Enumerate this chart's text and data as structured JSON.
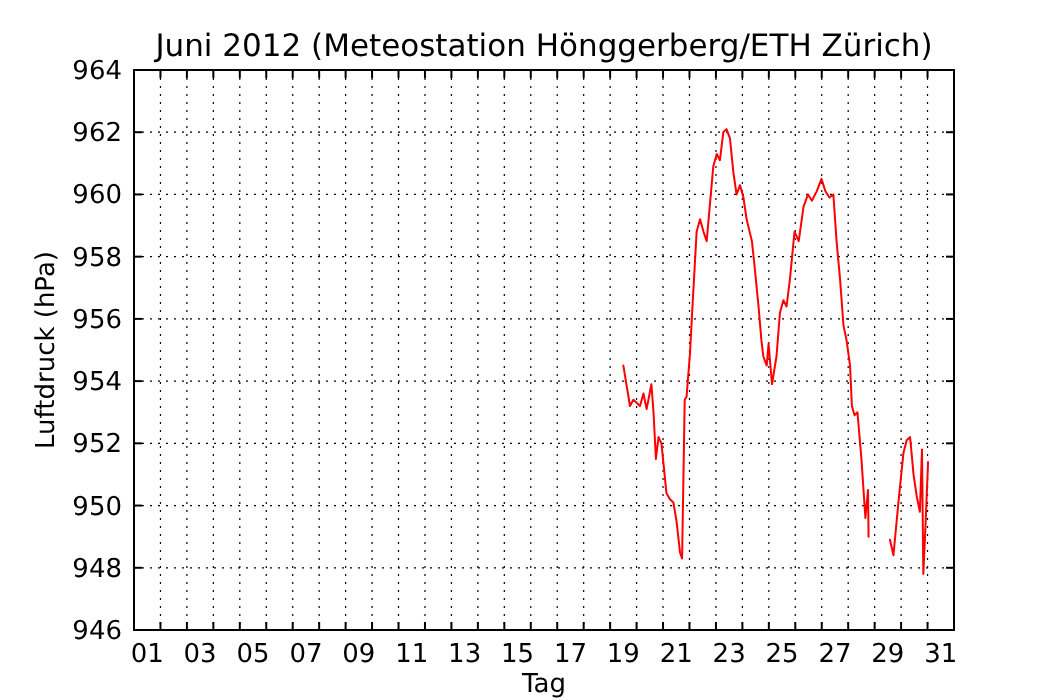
{
  "chart_data": {
    "type": "line",
    "title": "Juni 2012  (Meteostation Hönggerberg/ETH Zürich)",
    "xlabel": "Tag",
    "ylabel": "Luftdruck (hPa)",
    "xlim": [
      1,
      32
    ],
    "ylim": [
      946,
      964
    ],
    "xticks": [
      {
        "value": 1,
        "label": null
      },
      {
        "value": 1.5,
        "label": "01"
      },
      {
        "value": 2,
        "label": null
      },
      {
        "value": 3,
        "label": null
      },
      {
        "value": 3.5,
        "label": "03"
      },
      {
        "value": 4,
        "label": null
      },
      {
        "value": 5,
        "label": null
      },
      {
        "value": 5.5,
        "label": "05"
      },
      {
        "value": 6,
        "label": null
      },
      {
        "value": 7,
        "label": null
      },
      {
        "value": 7.5,
        "label": "07"
      },
      {
        "value": 8,
        "label": null
      },
      {
        "value": 9,
        "label": null
      },
      {
        "value": 9.5,
        "label": "09"
      },
      {
        "value": 10,
        "label": null
      },
      {
        "value": 11,
        "label": null
      },
      {
        "value": 11.5,
        "label": "11"
      },
      {
        "value": 12,
        "label": null
      },
      {
        "value": 13,
        "label": null
      },
      {
        "value": 13.5,
        "label": "13"
      },
      {
        "value": 14,
        "label": null
      },
      {
        "value": 15,
        "label": null
      },
      {
        "value": 15.5,
        "label": "15"
      },
      {
        "value": 16,
        "label": null
      },
      {
        "value": 17,
        "label": null
      },
      {
        "value": 17.5,
        "label": "17"
      },
      {
        "value": 18,
        "label": null
      },
      {
        "value": 19,
        "label": null
      },
      {
        "value": 19.5,
        "label": "19"
      },
      {
        "value": 20,
        "label": null
      },
      {
        "value": 21,
        "label": null
      },
      {
        "value": 21.5,
        "label": "21"
      },
      {
        "value": 22,
        "label": null
      },
      {
        "value": 23,
        "label": null
      },
      {
        "value": 23.5,
        "label": "23"
      },
      {
        "value": 24,
        "label": null
      },
      {
        "value": 25,
        "label": null
      },
      {
        "value": 25.5,
        "label": "25"
      },
      {
        "value": 26,
        "label": null
      },
      {
        "value": 27,
        "label": null
      },
      {
        "value": 27.5,
        "label": "27"
      },
      {
        "value": 28,
        "label": null
      },
      {
        "value": 29,
        "label": null
      },
      {
        "value": 29.5,
        "label": "29"
      },
      {
        "value": 30,
        "label": null
      },
      {
        "value": 31,
        "label": null
      },
      {
        "value": 31.5,
        "label": "31"
      },
      {
        "value": 32,
        "label": null
      }
    ],
    "yticks": [
      946,
      948,
      950,
      952,
      954,
      956,
      958,
      960,
      962,
      964
    ],
    "grid": true,
    "series": [
      {
        "color": "#ff0000",
        "x": [
          19.5,
          19.75,
          19.88,
          20.13,
          20.26,
          20.38,
          20.56,
          20.64,
          20.73,
          20.83,
          20.94,
          21.13,
          21.26,
          21.39,
          21.51,
          21.64,
          21.72,
          21.82,
          21.89,
          22.02,
          22.1,
          22.27,
          22.4,
          22.53,
          22.65,
          22.9,
          23.03,
          23.15,
          23.28,
          23.4,
          23.53,
          23.66,
          23.78,
          23.91,
          24.04,
          24.16,
          24.36,
          24.46,
          24.61,
          24.72,
          24.79,
          24.92,
          24.99,
          25.12,
          25.29,
          25.42,
          25.55,
          25.67,
          25.8,
          25.97,
          26.13,
          26.31,
          26.48,
          26.63,
          26.81,
          26.99,
          27.14,
          27.29,
          27.44,
          27.56,
          27.69,
          27.82,
          27.94,
          28.07,
          28.14,
          28.24,
          28.35,
          28.5,
          28.65,
          28.75,
          28.77,
          29.2,
          29.58,
          29.71,
          29.91,
          30.09,
          30.21,
          30.34,
          30.47,
          30.59,
          30.71,
          30.79,
          30.84,
          30.92,
          31.02
        ],
        "values": [
          954.5,
          953.2,
          953.4,
          953.2,
          953.6,
          953.1,
          953.9,
          953.0,
          951.5,
          952.2,
          952.0,
          950.4,
          950.2,
          950.1,
          949.5,
          948.5,
          948.3,
          953.4,
          953.5,
          954.9,
          956.2,
          958.8,
          959.2,
          958.8,
          958.5,
          960.9,
          961.3,
          961.1,
          962.0,
          962.1,
          961.8,
          960.7,
          960.0,
          960.3,
          959.9,
          959.2,
          958.5,
          957.7,
          956.4,
          955.3,
          954.8,
          954.5,
          955.2,
          953.9,
          954.8,
          956.2,
          956.6,
          956.4,
          957.3,
          958.8,
          958.5,
          959.6,
          960.0,
          959.8,
          960.1,
          960.5,
          960.1,
          959.9,
          960.0,
          958.5,
          957.3,
          955.8,
          955.3,
          954.5,
          953.2,
          952.9,
          953.0,
          951.5,
          949.6,
          950.5,
          949.0,
          null,
          948.9,
          948.4,
          950.2,
          951.7,
          952.1,
          952.2,
          951.0,
          950.3,
          949.8,
          951.8,
          947.8,
          949.3,
          951.4
        ]
      }
    ]
  }
}
